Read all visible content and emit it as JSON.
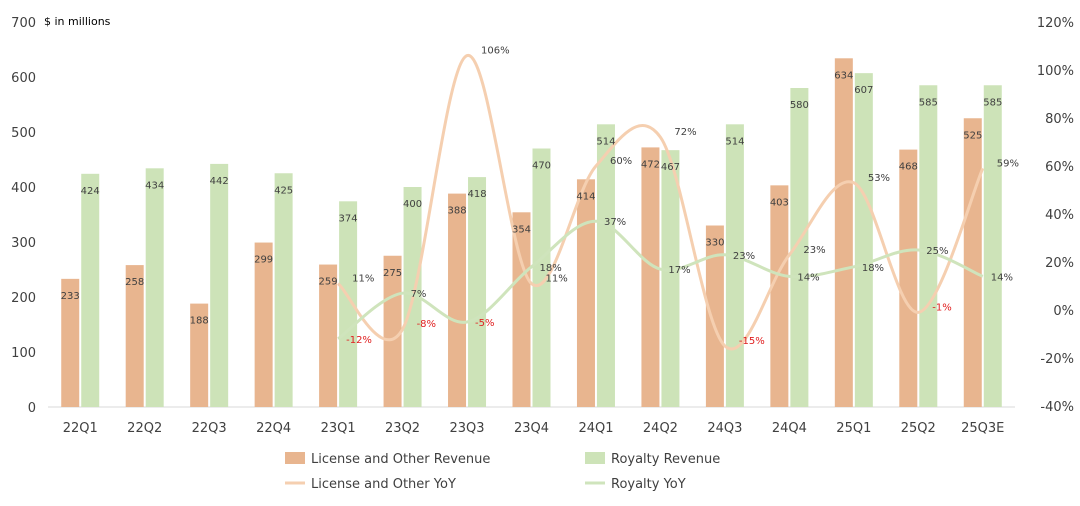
{
  "chart_data": {
    "type": "bar",
    "unit_label": "$ in millions",
    "categories": [
      "22Q1",
      "22Q2",
      "22Q3",
      "22Q4",
      "23Q1",
      "23Q2",
      "23Q3",
      "23Q4",
      "24Q1",
      "24Q2",
      "24Q3",
      "24Q4",
      "25Q1",
      "25Q2",
      "25Q3E"
    ],
    "ylim": [
      0,
      700
    ],
    "yticks": [
      0,
      100,
      200,
      300,
      400,
      500,
      600,
      700
    ],
    "y2lim": [
      -40,
      120
    ],
    "y2ticks": [
      -40,
      -20,
      0,
      20,
      40,
      60,
      80,
      100,
      120
    ],
    "y2tick_labels": [
      "-40%",
      "-20%",
      "0%",
      "20%",
      "40%",
      "60%",
      "80%",
      "100%",
      "120%"
    ],
    "series": [
      {
        "name": "License and Other Revenue",
        "kind": "bar",
        "axis": "left",
        "color": "#e8b58f",
        "values": [
          233,
          258,
          188,
          299,
          259,
          275,
          388,
          354,
          414,
          472,
          330,
          403,
          634,
          468,
          525
        ]
      },
      {
        "name": "Royalty Revenue",
        "kind": "bar",
        "axis": "left",
        "color": "#cde3b8",
        "values": [
          424,
          434,
          442,
          425,
          374,
          400,
          418,
          470,
          514,
          467,
          514,
          580,
          607,
          585,
          585
        ]
      },
      {
        "name": "License and Other YoY",
        "kind": "line",
        "axis": "right",
        "color": "#f5cfb0",
        "values": [
          null,
          null,
          null,
          null,
          11,
          -8,
          106,
          11,
          60,
          72,
          -15,
          23,
          53,
          -1,
          59
        ],
        "labels": [
          null,
          null,
          null,
          null,
          "11%",
          "-8%",
          "106%",
          "11%",
          "60%",
          "72%",
          "-15%",
          "23%",
          "53%",
          "-1%",
          "59%"
        ]
      },
      {
        "name": "Royalty YoY",
        "kind": "line",
        "axis": "right",
        "color": "#cfe4bc",
        "values": [
          null,
          null,
          null,
          null,
          -12,
          7,
          -5,
          18,
          37,
          17,
          23,
          14,
          18,
          25,
          14
        ],
        "labels": [
          null,
          null,
          null,
          null,
          "-12%",
          "7%",
          "-5%",
          "18%",
          "37%",
          "17%",
          "23%",
          "14%",
          "18%",
          "25%",
          "14%"
        ]
      }
    ],
    "legend": [
      "License and Other Revenue",
      "Royalty Revenue",
      "License and Other YoY",
      "Royalty YoY"
    ],
    "legend_position": "bottom",
    "grid": false
  }
}
